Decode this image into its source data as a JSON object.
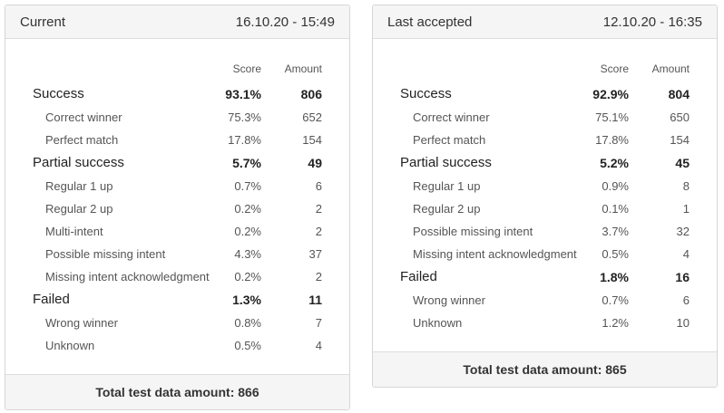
{
  "panels": [
    {
      "title": "Current",
      "timestamp": "16.10.20 - 15:49",
      "score_header": "Score",
      "amount_header": "Amount",
      "rows": [
        {
          "type": "cat",
          "label": "Success",
          "score": "93.1%",
          "amount": "806"
        },
        {
          "type": "sub",
          "label": "Correct winner",
          "score": "75.3%",
          "amount": "652"
        },
        {
          "type": "sub",
          "label": "Perfect match",
          "score": "17.8%",
          "amount": "154"
        },
        {
          "type": "cat",
          "label": "Partial success",
          "score": "5.7%",
          "amount": "49"
        },
        {
          "type": "sub",
          "label": "Regular 1 up",
          "score": "0.7%",
          "amount": "6"
        },
        {
          "type": "sub",
          "label": "Regular 2 up",
          "score": "0.2%",
          "amount": "2"
        },
        {
          "type": "sub",
          "label": "Multi-intent",
          "score": "0.2%",
          "amount": "2"
        },
        {
          "type": "sub",
          "label": "Possible missing intent",
          "score": "4.3%",
          "amount": "37"
        },
        {
          "type": "sub",
          "label": "Missing intent acknowledgment",
          "score": "0.2%",
          "amount": "2"
        },
        {
          "type": "cat",
          "label": "Failed",
          "score": "1.3%",
          "amount": "11"
        },
        {
          "type": "sub",
          "label": "Wrong winner",
          "score": "0.8%",
          "amount": "7"
        },
        {
          "type": "sub",
          "label": "Unknown",
          "score": "0.5%",
          "amount": "4"
        }
      ],
      "footer": "Total test data amount: 866"
    },
    {
      "title": "Last accepted",
      "timestamp": "12.10.20 - 16:35",
      "score_header": "Score",
      "amount_header": "Amount",
      "rows": [
        {
          "type": "cat",
          "label": "Success",
          "score": "92.9%",
          "amount": "804"
        },
        {
          "type": "sub",
          "label": "Correct winner",
          "score": "75.1%",
          "amount": "650"
        },
        {
          "type": "sub",
          "label": "Perfect match",
          "score": "17.8%",
          "amount": "154"
        },
        {
          "type": "cat",
          "label": "Partial success",
          "score": "5.2%",
          "amount": "45"
        },
        {
          "type": "sub",
          "label": "Regular 1 up",
          "score": "0.9%",
          "amount": "8"
        },
        {
          "type": "sub",
          "label": "Regular 2 up",
          "score": "0.1%",
          "amount": "1"
        },
        {
          "type": "sub",
          "label": "Possible missing intent",
          "score": "3.7%",
          "amount": "32"
        },
        {
          "type": "sub",
          "label": "Missing intent acknowledgment",
          "score": "0.5%",
          "amount": "4"
        },
        {
          "type": "cat",
          "label": "Failed",
          "score": "1.8%",
          "amount": "16"
        },
        {
          "type": "sub",
          "label": "Wrong winner",
          "score": "0.7%",
          "amount": "6"
        },
        {
          "type": "sub",
          "label": "Unknown",
          "score": "1.2%",
          "amount": "10"
        }
      ],
      "footer": "Total test data amount: 865"
    }
  ]
}
